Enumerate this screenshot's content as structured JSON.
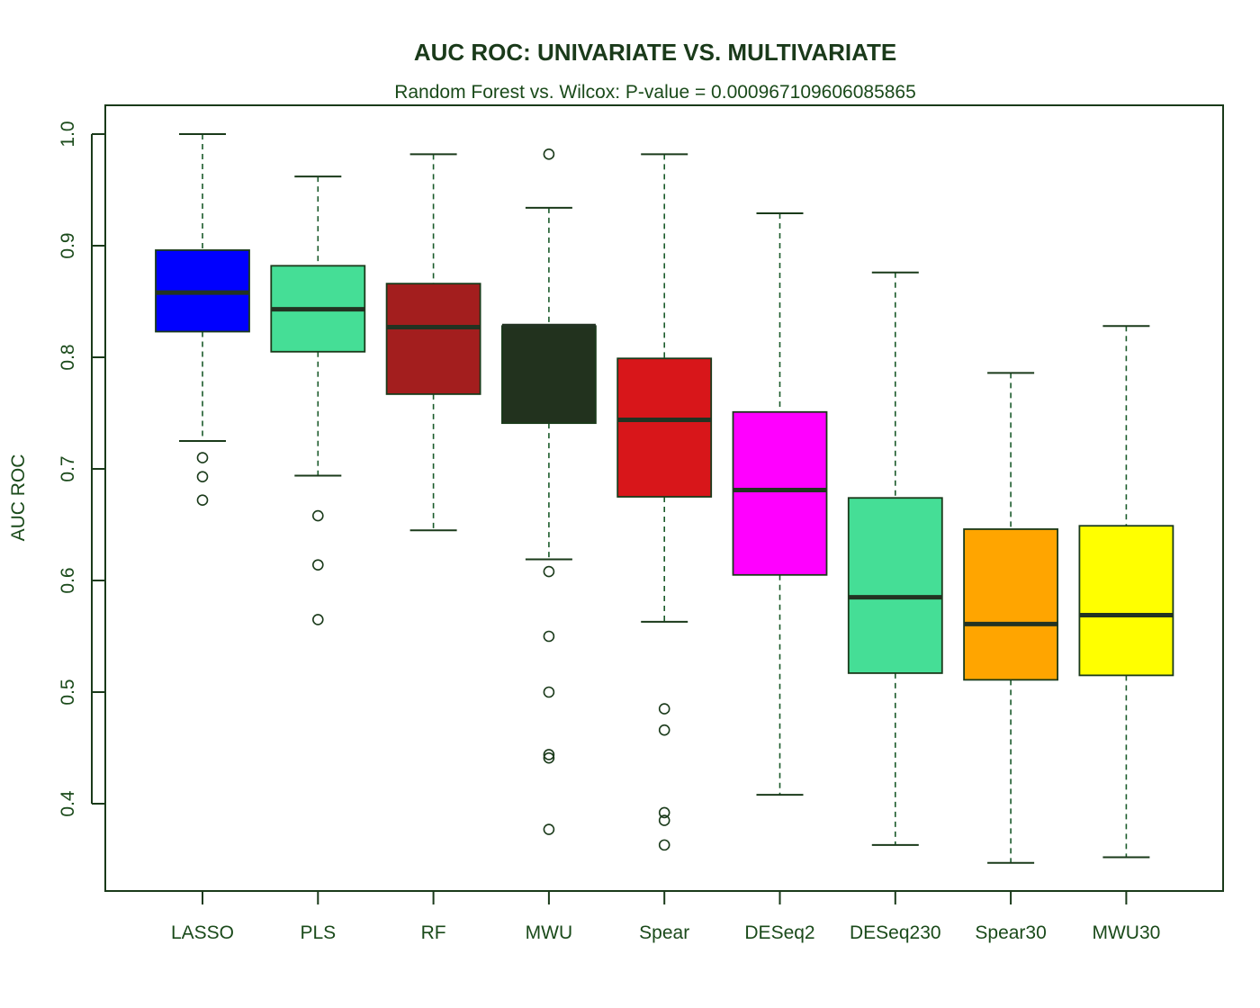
{
  "chart_data": {
    "type": "boxplot",
    "title": "AUC ROC: UNIVARIATE VS. MULTIVARIATE",
    "subtitle": "Random Forest vs. Wilcox: P-value = 0.000967109606085865",
    "xlabel": "",
    "ylabel": "AUC ROC",
    "ylim": [
      0.33,
      1.03
    ],
    "yticks": [
      0.4,
      0.5,
      0.6,
      0.7,
      0.8,
      0.9,
      1.0
    ],
    "ytick_labels": [
      "0.4",
      "0.5",
      "0.6",
      "0.7",
      "0.8",
      "0.9",
      "1.0"
    ],
    "grid": false,
    "series": [
      {
        "name": "LASSO",
        "color": "#0000ff",
        "whisker_low": 0.725,
        "q1": 0.823,
        "median": 0.858,
        "q3": 0.896,
        "whisker_high": 1.0,
        "outliers": [
          0.71,
          0.693,
          0.672
        ]
      },
      {
        "name": "PLS",
        "color": "#45de96",
        "whisker_low": 0.694,
        "q1": 0.805,
        "median": 0.843,
        "q3": 0.882,
        "whisker_high": 0.962,
        "outliers": [
          0.658,
          0.614,
          0.565
        ]
      },
      {
        "name": "RF",
        "color": "#a31e1e",
        "whisker_low": 0.645,
        "q1": 0.767,
        "median": 0.827,
        "q3": 0.866,
        "whisker_high": 0.982,
        "outliers": []
      },
      {
        "name": "MWU",
        "color": "#22321e",
        "whisker_low": 0.619,
        "q1": 0.741,
        "median": 0.828,
        "q3": 0.828,
        "whisker_high": 0.934,
        "outliers": [
          0.982,
          0.608,
          0.55,
          0.5,
          0.444,
          0.441,
          0.377
        ]
      },
      {
        "name": "Spear",
        "color": "#d8161a",
        "whisker_low": 0.563,
        "q1": 0.675,
        "median": 0.744,
        "q3": 0.799,
        "whisker_high": 0.982,
        "outliers": [
          0.485,
          0.466,
          0.392,
          0.385,
          0.363
        ]
      },
      {
        "name": "DESeq2",
        "color": "#ff00ff",
        "whisker_low": 0.408,
        "q1": 0.605,
        "median": 0.681,
        "q3": 0.751,
        "whisker_high": 0.929,
        "outliers": []
      },
      {
        "name": "DESeq230",
        "color": "#45de96",
        "whisker_low": 0.363,
        "q1": 0.517,
        "median": 0.585,
        "q3": 0.674,
        "whisker_high": 0.876,
        "outliers": []
      },
      {
        "name": "Spear30",
        "color": "#ffa500",
        "whisker_low": 0.347,
        "q1": 0.511,
        "median": 0.561,
        "q3": 0.646,
        "whisker_high": 0.786,
        "outliers": []
      },
      {
        "name": "MWU30",
        "color": "#ffff00",
        "whisker_low": 0.352,
        "q1": 0.515,
        "median": 0.569,
        "q3": 0.649,
        "whisker_high": 0.828,
        "outliers": []
      }
    ]
  }
}
